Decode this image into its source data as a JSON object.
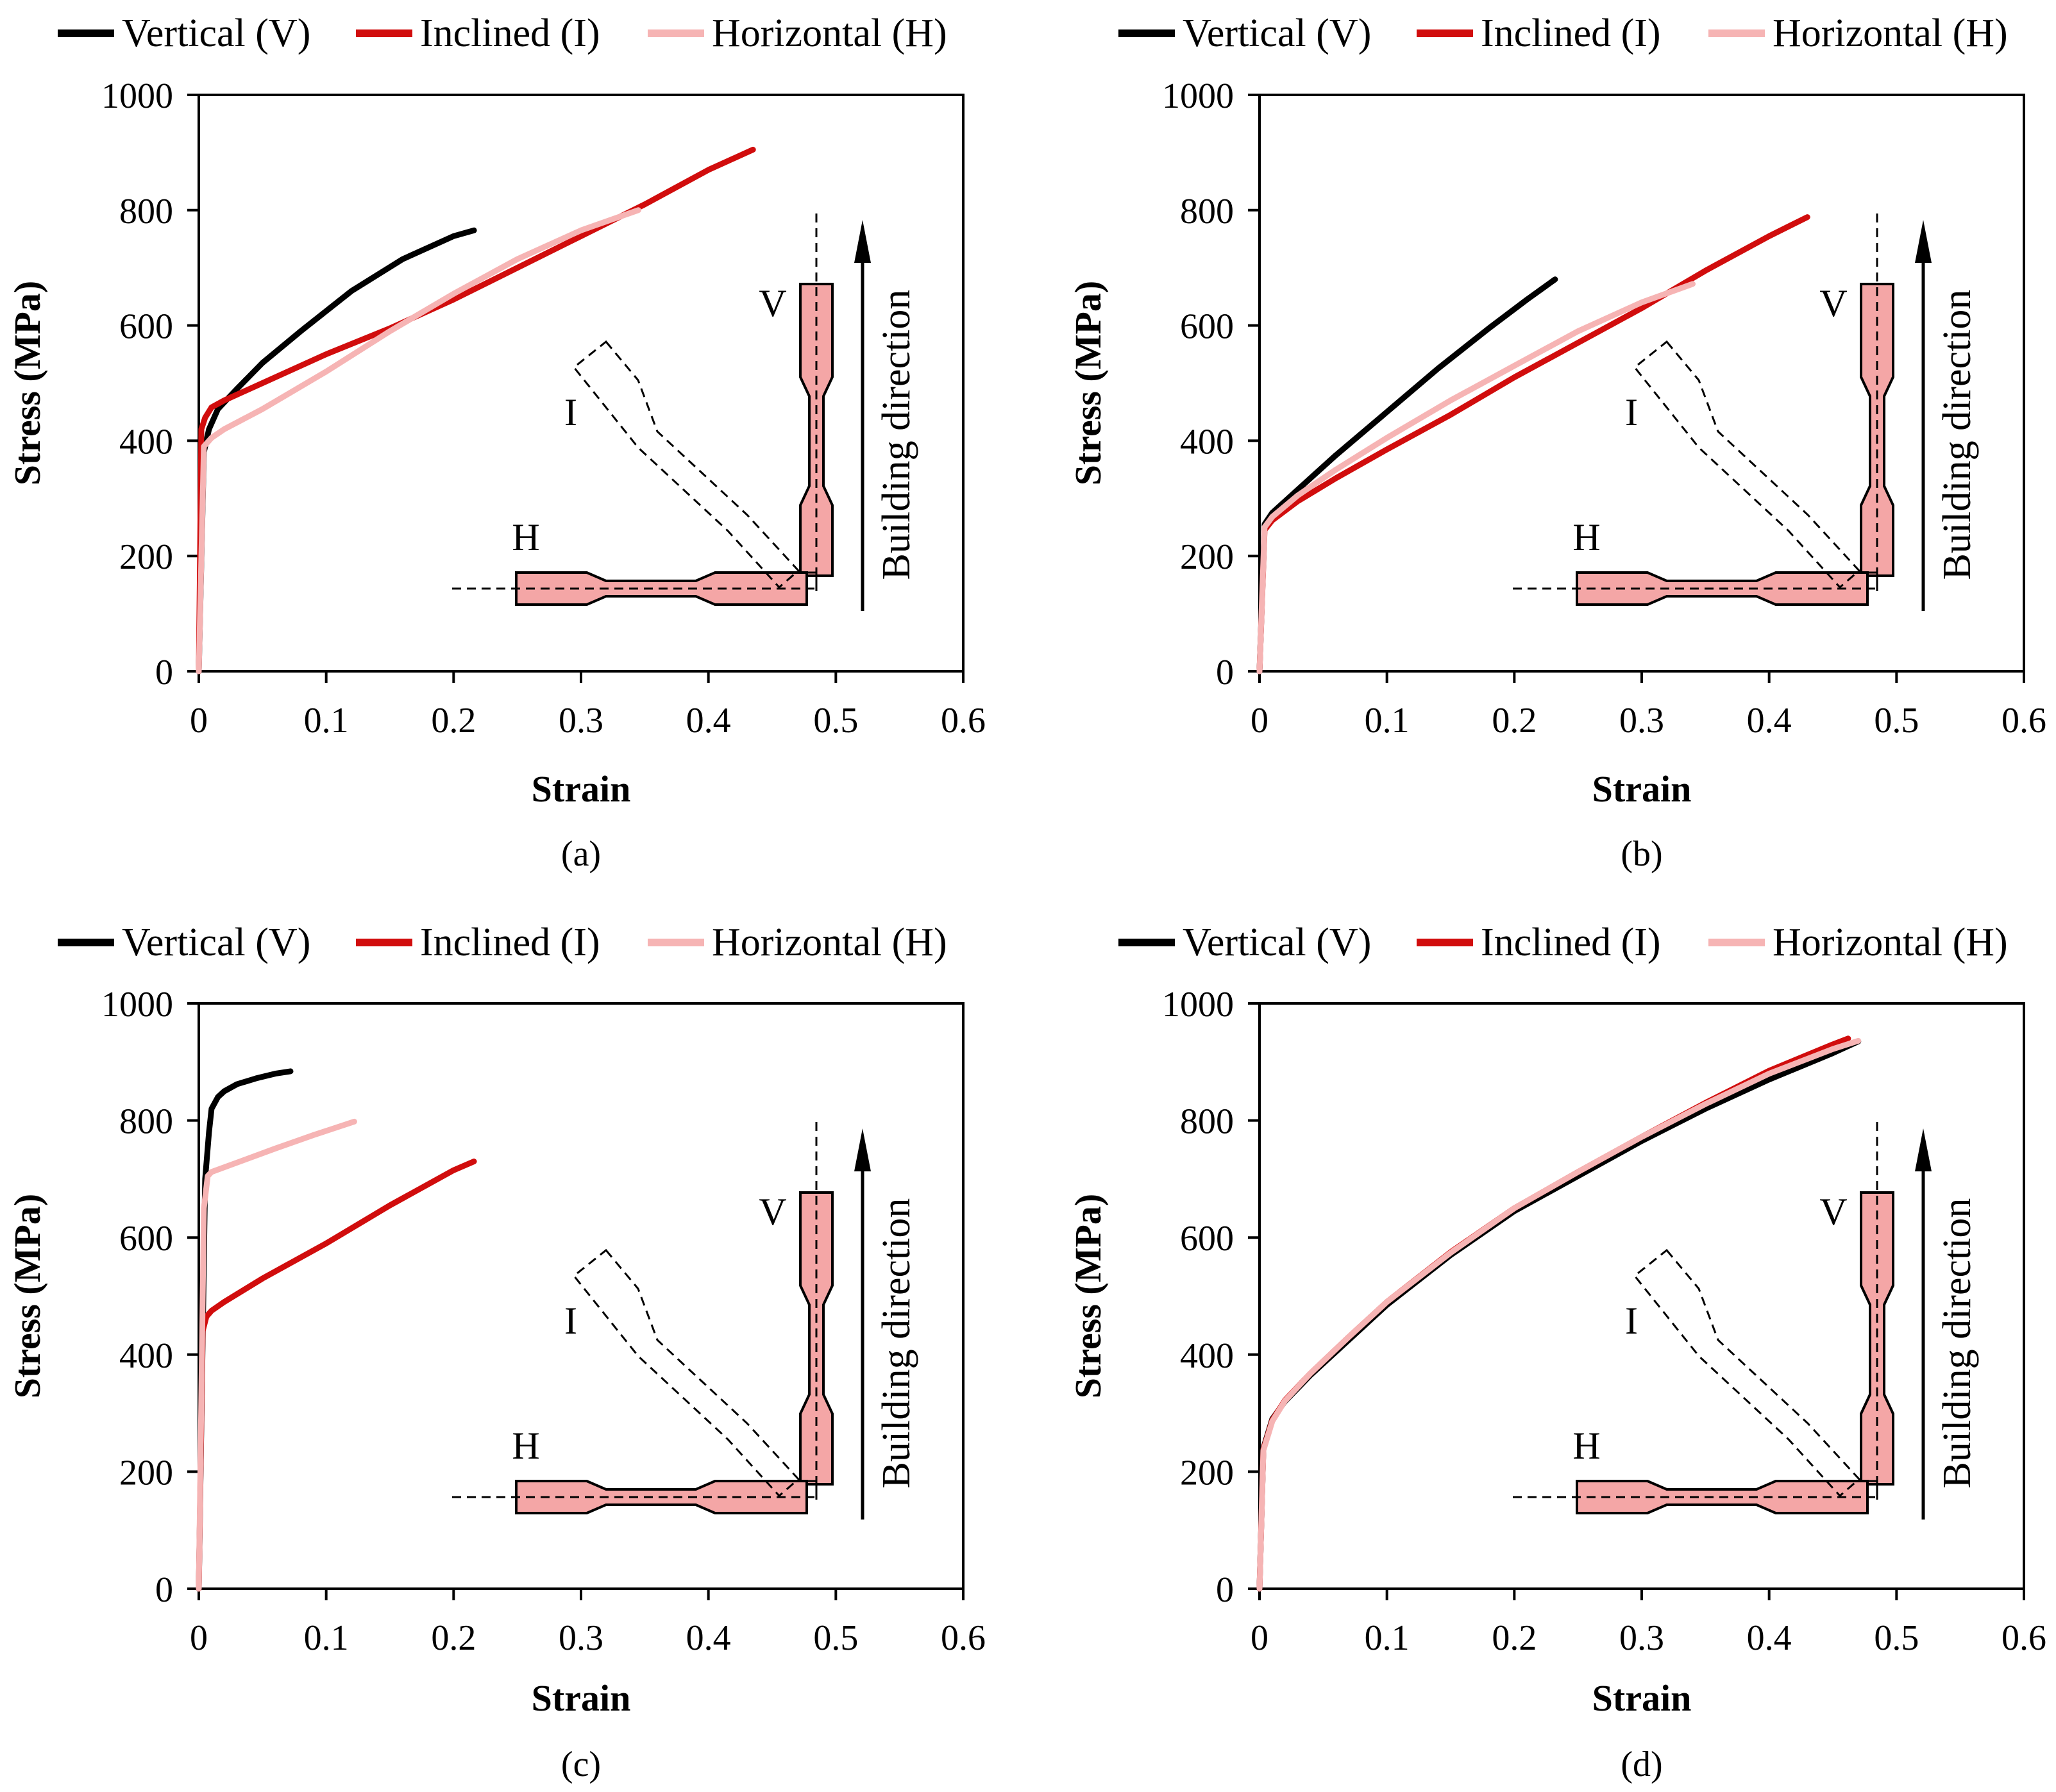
{
  "figure": {
    "colors": {
      "vertical": "#000000",
      "inclined": "#d10d0d",
      "horizontal": "#f6b4b4",
      "specimen_fill": "#f4a6a6"
    }
  },
  "chart_data": [
    {
      "type": "line",
      "panel_label": "(a)",
      "xlabel": "Strain",
      "ylabel": "Stress (MPa)",
      "xlim": [
        0,
        0.6
      ],
      "ylim": [
        0,
        1000
      ],
      "xticks": [
        "0",
        "0.1",
        "0.2",
        "0.3",
        "0.4",
        "0.5",
        "0.6"
      ],
      "yticks": [
        "0",
        "200",
        "400",
        "600",
        "800",
        "1000"
      ],
      "legend": [
        "Vertical (V)",
        "Inclined (I)",
        "Horizontal (H)"
      ],
      "inset": {
        "v_label": "V",
        "i_label": "I",
        "h_label": "H",
        "direction_label": "Building direction"
      },
      "series": [
        {
          "name": "Vertical (V)",
          "color": "#000000",
          "x": [
            0,
            0.004,
            0.008,
            0.015,
            0.03,
            0.05,
            0.08,
            0.12,
            0.16,
            0.2,
            0.216
          ],
          "y": [
            0,
            380,
            420,
            455,
            490,
            535,
            590,
            660,
            715,
            755,
            765
          ]
        },
        {
          "name": "Inclined (I)",
          "color": "#d10d0d",
          "x": [
            0,
            0.002,
            0.005,
            0.01,
            0.02,
            0.05,
            0.1,
            0.15,
            0.2,
            0.25,
            0.3,
            0.35,
            0.4,
            0.435
          ],
          "y": [
            0,
            420,
            440,
            458,
            470,
            500,
            550,
            595,
            645,
            700,
            755,
            810,
            870,
            905
          ]
        },
        {
          "name": "Horizontal (H)",
          "color": "#f6b4b4",
          "x": [
            0,
            0.004,
            0.01,
            0.02,
            0.05,
            0.1,
            0.15,
            0.2,
            0.25,
            0.3,
            0.345
          ],
          "y": [
            0,
            390,
            405,
            420,
            455,
            520,
            590,
            655,
            715,
            765,
            800
          ]
        }
      ]
    },
    {
      "type": "line",
      "panel_label": "(b)",
      "xlabel": "Strain",
      "ylabel": "Stress (MPa)",
      "xlim": [
        0,
        0.6
      ],
      "ylim": [
        0,
        1000
      ],
      "xticks": [
        "0",
        "0.1",
        "0.2",
        "0.3",
        "0.4",
        "0.5",
        "0.6"
      ],
      "yticks": [
        "0",
        "200",
        "400",
        "600",
        "800",
        "1000"
      ],
      "legend": [
        "Vertical (V)",
        "Inclined (I)",
        "Horizontal (H)"
      ],
      "inset": {
        "v_label": "V",
        "i_label": "I",
        "h_label": "H",
        "direction_label": "Building direction"
      },
      "series": [
        {
          "name": "Vertical (V)",
          "color": "#000000",
          "x": [
            0,
            0.004,
            0.01,
            0.03,
            0.06,
            0.1,
            0.14,
            0.18,
            0.21,
            0.232
          ],
          "y": [
            0,
            255,
            275,
            315,
            375,
            450,
            525,
            595,
            645,
            680
          ]
        },
        {
          "name": "Inclined (I)",
          "color": "#d10d0d",
          "x": [
            0,
            0.004,
            0.01,
            0.03,
            0.06,
            0.1,
            0.15,
            0.2,
            0.25,
            0.3,
            0.35,
            0.4,
            0.43
          ],
          "y": [
            0,
            245,
            262,
            295,
            335,
            385,
            445,
            510,
            570,
            630,
            695,
            755,
            788
          ]
        },
        {
          "name": "Horizontal (H)",
          "color": "#f6b4b4",
          "x": [
            0,
            0.004,
            0.01,
            0.03,
            0.06,
            0.1,
            0.15,
            0.2,
            0.25,
            0.3,
            0.34
          ],
          "y": [
            0,
            250,
            268,
            305,
            350,
            405,
            470,
            530,
            590,
            640,
            672
          ]
        }
      ]
    },
    {
      "type": "line",
      "panel_label": "(c)",
      "xlabel": "Strain",
      "ylabel": "Stress (MPa)",
      "xlim": [
        0,
        0.6
      ],
      "ylim": [
        0,
        1000
      ],
      "xticks": [
        "0",
        "0.1",
        "0.2",
        "0.3",
        "0.4",
        "0.5",
        "0.6"
      ],
      "yticks": [
        "0",
        "200",
        "400",
        "600",
        "800",
        "1000"
      ],
      "legend": [
        "Vertical (V)",
        "Inclined (I)",
        "Horizontal (H)"
      ],
      "inset": {
        "v_label": "V",
        "i_label": "I",
        "h_label": "H",
        "direction_label": "Building direction"
      },
      "series": [
        {
          "name": "Vertical (V)",
          "color": "#000000",
          "x": [
            0,
            0.005,
            0.008,
            0.01,
            0.015,
            0.02,
            0.03,
            0.045,
            0.06,
            0.072
          ],
          "y": [
            0,
            700,
            780,
            820,
            840,
            850,
            862,
            872,
            880,
            884
          ]
        },
        {
          "name": "Inclined (I)",
          "color": "#d10d0d",
          "x": [
            0,
            0.003,
            0.006,
            0.01,
            0.02,
            0.05,
            0.1,
            0.15,
            0.2,
            0.216
          ],
          "y": [
            0,
            440,
            465,
            475,
            490,
            530,
            590,
            655,
            715,
            730
          ]
        },
        {
          "name": "Horizontal (H)",
          "color": "#f6b4b4",
          "x": [
            0,
            0.004,
            0.007,
            0.01,
            0.03,
            0.06,
            0.09,
            0.122
          ],
          "y": [
            0,
            650,
            705,
            712,
            728,
            752,
            775,
            798
          ]
        }
      ]
    },
    {
      "type": "line",
      "panel_label": "(d)",
      "xlabel": "Strain",
      "ylabel": "Stress (MPa)",
      "xlim": [
        0,
        0.6
      ],
      "ylim": [
        0,
        1000
      ],
      "xticks": [
        "0",
        "0.1",
        "0.2",
        "0.3",
        "0.4",
        "0.5",
        "0.6"
      ],
      "yticks": [
        "0",
        "200",
        "400",
        "600",
        "800",
        "1000"
      ],
      "legend": [
        "Vertical (V)",
        "Inclined (I)",
        "Horizontal (H)"
      ],
      "inset": {
        "v_label": "V",
        "i_label": "I",
        "h_label": "H",
        "direction_label": "Building direction"
      },
      "series": [
        {
          "name": "Vertical (V)",
          "color": "#000000",
          "x": [
            0,
            0.003,
            0.01,
            0.02,
            0.04,
            0.07,
            0.1,
            0.15,
            0.2,
            0.25,
            0.3,
            0.35,
            0.4,
            0.45,
            0.47
          ],
          "y": [
            0,
            240,
            290,
            320,
            365,
            425,
            485,
            570,
            645,
            705,
            765,
            820,
            870,
            915,
            935
          ]
        },
        {
          "name": "Inclined (I)",
          "color": "#d10d0d",
          "x": [
            0,
            0.003,
            0.01,
            0.02,
            0.04,
            0.07,
            0.1,
            0.15,
            0.2,
            0.25,
            0.3,
            0.35,
            0.4,
            0.45,
            0.462
          ],
          "y": [
            0,
            238,
            288,
            322,
            368,
            430,
            490,
            575,
            650,
            712,
            772,
            830,
            885,
            930,
            940
          ]
        },
        {
          "name": "Horizontal (H)",
          "color": "#f6b4b4",
          "x": [
            0,
            0.003,
            0.01,
            0.02,
            0.04,
            0.07,
            0.1,
            0.15,
            0.2,
            0.25,
            0.3,
            0.35,
            0.4,
            0.45,
            0.47
          ],
          "y": [
            0,
            236,
            286,
            321,
            368,
            430,
            490,
            574,
            650,
            712,
            772,
            828,
            880,
            922,
            936
          ]
        }
      ]
    }
  ]
}
